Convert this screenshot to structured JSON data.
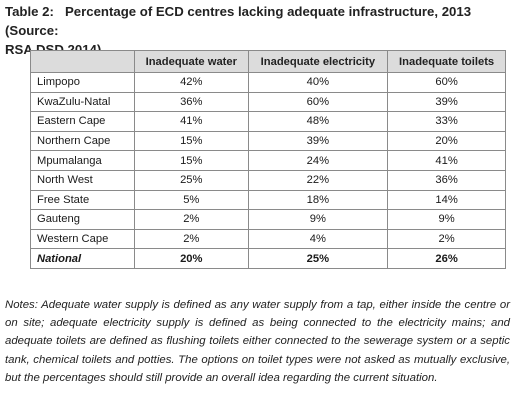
{
  "caption": {
    "label": "Table 2:",
    "title_line1": "Percentage of ECD centres lacking adequate infrastructure, 2013 (Source:",
    "title_line2": "RSA DSD 2014)"
  },
  "table": {
    "headers": [
      "",
      "Inadequate water",
      "Inadequate electricity",
      "Inadequate toilets"
    ],
    "rows": [
      {
        "region": "Limpopo",
        "water": "42%",
        "electricity": "40%",
        "toilets": "60%"
      },
      {
        "region": "KwaZulu-Natal",
        "water": "36%",
        "electricity": "60%",
        "toilets": "39%"
      },
      {
        "region": "Eastern Cape",
        "water": "41%",
        "electricity": "48%",
        "toilets": "33%"
      },
      {
        "region": "Northern Cape",
        "water": "15%",
        "electricity": "39%",
        "toilets": "20%"
      },
      {
        "region": "Mpumalanga",
        "water": "15%",
        "electricity": "24%",
        "toilets": "41%"
      },
      {
        "region": "North West",
        "water": "25%",
        "electricity": "22%",
        "toilets": "36%"
      },
      {
        "region": "Free State",
        "water": "5%",
        "electricity": "18%",
        "toilets": "14%"
      },
      {
        "region": "Gauteng",
        "water": "2%",
        "electricity": "9%",
        "toilets": "9%"
      },
      {
        "region": "Western Cape",
        "water": "2%",
        "electricity": "4%",
        "toilets": "2%"
      },
      {
        "region": "National",
        "water": "20%",
        "electricity": "25%",
        "toilets": "26%"
      }
    ]
  },
  "notes": "Notes: Adequate water supply is defined as any water supply from a tap, either inside the centre or on site; adequate electricity supply is defined as being connected to the electricity mains; and adequate toilets are defined as flushing toilets either connected to the sewerage system or a septic tank, chemical toilets and potties. The options on toilet types were not asked as mutually exclusive, but the percentages should still provide an overall idea regarding the current situation."
}
